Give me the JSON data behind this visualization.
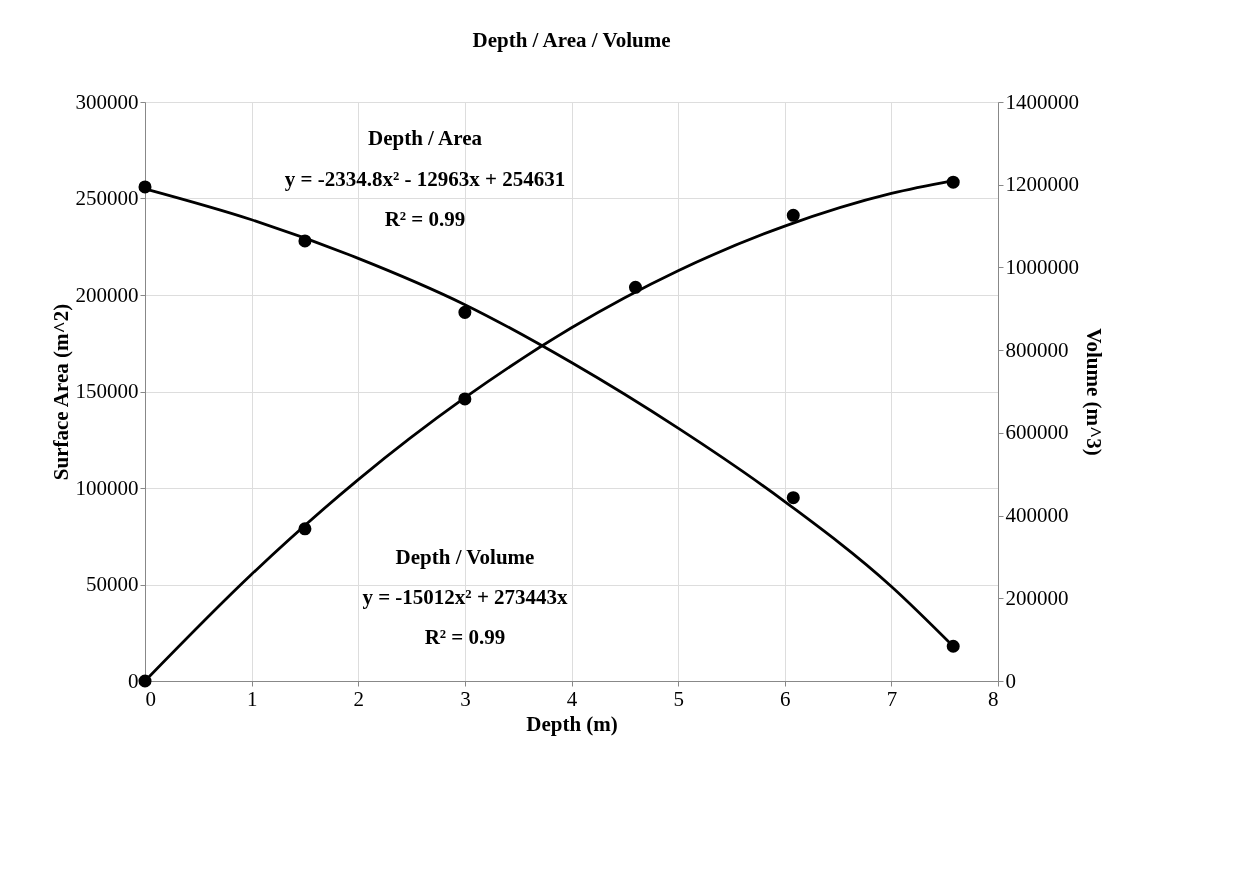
{
  "chart_data": {
    "type": "scatter",
    "title": "Depth / Area / Volume",
    "xlabel": "Depth (m)",
    "ylabel": "Surface Area (m^2)",
    "y2label": "Volume (m^3)",
    "xlim": [
      0,
      8
    ],
    "xticks": [
      0,
      1,
      2,
      3,
      4,
      5,
      6,
      7,
      8
    ],
    "ylim": [
      0,
      300000
    ],
    "yticks": [
      0,
      50000,
      100000,
      150000,
      200000,
      250000,
      300000
    ],
    "y2lim": [
      0,
      1400000
    ],
    "y2ticks": [
      0,
      200000,
      400000,
      600000,
      800000,
      1000000,
      1200000,
      1400000
    ],
    "grid": true,
    "marker": "circle",
    "annotations": [
      "Depth / Area",
      "y = -2334.8x² - 12963x + 254631",
      "R² = 0.99",
      "Depth / Volume",
      "y = -15012x² + 273443x",
      "R² = 0.99"
    ],
    "series": [
      {
        "color": "#000000",
        "x": [
          0,
          1.5,
          3,
          6.08,
          7.58
        ],
        "values": [
          256000,
          228000,
          191000,
          95000,
          18000
        ]
      },
      {
        "axis": "y2",
        "color": "#000000",
        "x": [
          0,
          1.5,
          3,
          4.6,
          6.08,
          7.58
        ],
        "values": [
          0,
          368000,
          682000,
          952000,
          1126000,
          1206000
        ]
      },
      {
        "type": "line",
        "marker": "none",
        "line_style": "solid",
        "color": "#000000",
        "x": [
          0,
          1,
          2,
          3,
          4,
          5,
          6,
          7,
          7.58
        ],
        "values": [
          255000,
          239000,
          219000,
          195000,
          165000,
          131000,
          93000,
          49000,
          18000
        ]
      },
      {
        "type": "line",
        "marker": "none",
        "line_style": "solid",
        "axis": "y2",
        "color": "#000000",
        "x": [
          0,
          1,
          2,
          3,
          4,
          5,
          6,
          7,
          7.58
        ],
        "values": [
          0,
          258000,
          487000,
          685000,
          854000,
          992000,
          1100000,
          1179000,
          1210000
        ]
      }
    ]
  }
}
